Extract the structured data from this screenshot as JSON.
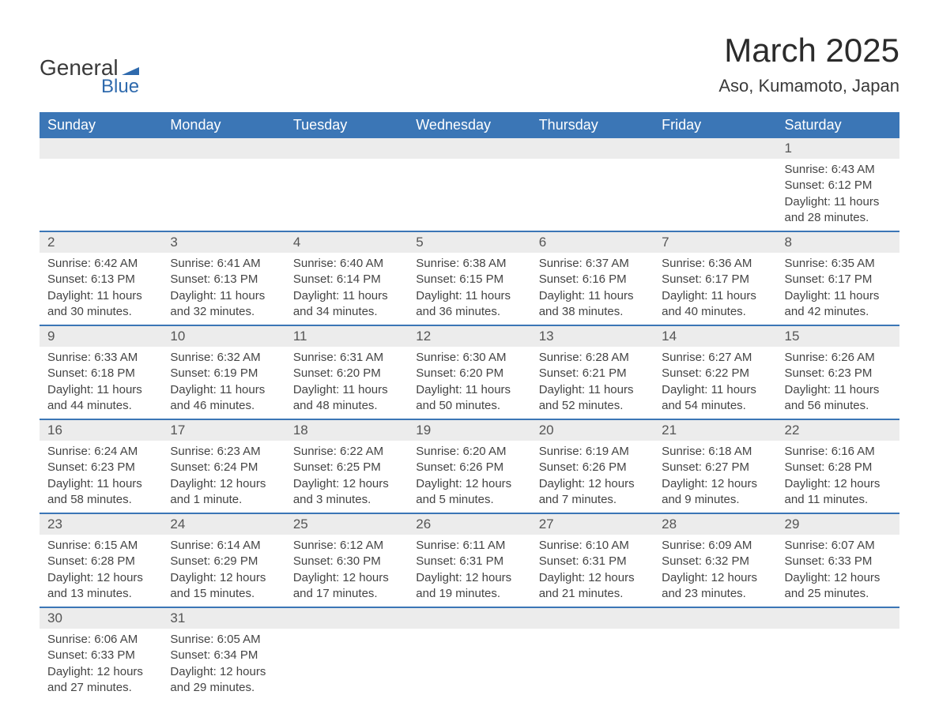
{
  "logo": {
    "text_general": "General",
    "text_blue": "Blue",
    "flag_color": "#2f6aad"
  },
  "title": "March 2025",
  "location": "Aso, Kumamoto, Japan",
  "colors": {
    "header_bg": "#3b76b6",
    "header_text": "#ffffff",
    "daynum_bg": "#ececec",
    "daynum_text": "#555555",
    "row_divider": "#3b76b6",
    "body_text": "#444444",
    "page_bg": "#ffffff"
  },
  "typography": {
    "title_fontsize": 42,
    "location_fontsize": 22,
    "header_fontsize": 18,
    "daynum_fontsize": 17,
    "content_fontsize": 15
  },
  "day_headers": [
    "Sunday",
    "Monday",
    "Tuesday",
    "Wednesday",
    "Thursday",
    "Friday",
    "Saturday"
  ],
  "weeks": [
    [
      null,
      null,
      null,
      null,
      null,
      null,
      {
        "n": "1",
        "sunrise": "Sunrise: 6:43 AM",
        "sunset": "Sunset: 6:12 PM",
        "daylight": "Daylight: 11 hours and 28 minutes."
      }
    ],
    [
      {
        "n": "2",
        "sunrise": "Sunrise: 6:42 AM",
        "sunset": "Sunset: 6:13 PM",
        "daylight": "Daylight: 11 hours and 30 minutes."
      },
      {
        "n": "3",
        "sunrise": "Sunrise: 6:41 AM",
        "sunset": "Sunset: 6:13 PM",
        "daylight": "Daylight: 11 hours and 32 minutes."
      },
      {
        "n": "4",
        "sunrise": "Sunrise: 6:40 AM",
        "sunset": "Sunset: 6:14 PM",
        "daylight": "Daylight: 11 hours and 34 minutes."
      },
      {
        "n": "5",
        "sunrise": "Sunrise: 6:38 AM",
        "sunset": "Sunset: 6:15 PM",
        "daylight": "Daylight: 11 hours and 36 minutes."
      },
      {
        "n": "6",
        "sunrise": "Sunrise: 6:37 AM",
        "sunset": "Sunset: 6:16 PM",
        "daylight": "Daylight: 11 hours and 38 minutes."
      },
      {
        "n": "7",
        "sunrise": "Sunrise: 6:36 AM",
        "sunset": "Sunset: 6:17 PM",
        "daylight": "Daylight: 11 hours and 40 minutes."
      },
      {
        "n": "8",
        "sunrise": "Sunrise: 6:35 AM",
        "sunset": "Sunset: 6:17 PM",
        "daylight": "Daylight: 11 hours and 42 minutes."
      }
    ],
    [
      {
        "n": "9",
        "sunrise": "Sunrise: 6:33 AM",
        "sunset": "Sunset: 6:18 PM",
        "daylight": "Daylight: 11 hours and 44 minutes."
      },
      {
        "n": "10",
        "sunrise": "Sunrise: 6:32 AM",
        "sunset": "Sunset: 6:19 PM",
        "daylight": "Daylight: 11 hours and 46 minutes."
      },
      {
        "n": "11",
        "sunrise": "Sunrise: 6:31 AM",
        "sunset": "Sunset: 6:20 PM",
        "daylight": "Daylight: 11 hours and 48 minutes."
      },
      {
        "n": "12",
        "sunrise": "Sunrise: 6:30 AM",
        "sunset": "Sunset: 6:20 PM",
        "daylight": "Daylight: 11 hours and 50 minutes."
      },
      {
        "n": "13",
        "sunrise": "Sunrise: 6:28 AM",
        "sunset": "Sunset: 6:21 PM",
        "daylight": "Daylight: 11 hours and 52 minutes."
      },
      {
        "n": "14",
        "sunrise": "Sunrise: 6:27 AM",
        "sunset": "Sunset: 6:22 PM",
        "daylight": "Daylight: 11 hours and 54 minutes."
      },
      {
        "n": "15",
        "sunrise": "Sunrise: 6:26 AM",
        "sunset": "Sunset: 6:23 PM",
        "daylight": "Daylight: 11 hours and 56 minutes."
      }
    ],
    [
      {
        "n": "16",
        "sunrise": "Sunrise: 6:24 AM",
        "sunset": "Sunset: 6:23 PM",
        "daylight": "Daylight: 11 hours and 58 minutes."
      },
      {
        "n": "17",
        "sunrise": "Sunrise: 6:23 AM",
        "sunset": "Sunset: 6:24 PM",
        "daylight": "Daylight: 12 hours and 1 minute."
      },
      {
        "n": "18",
        "sunrise": "Sunrise: 6:22 AM",
        "sunset": "Sunset: 6:25 PM",
        "daylight": "Daylight: 12 hours and 3 minutes."
      },
      {
        "n": "19",
        "sunrise": "Sunrise: 6:20 AM",
        "sunset": "Sunset: 6:26 PM",
        "daylight": "Daylight: 12 hours and 5 minutes."
      },
      {
        "n": "20",
        "sunrise": "Sunrise: 6:19 AM",
        "sunset": "Sunset: 6:26 PM",
        "daylight": "Daylight: 12 hours and 7 minutes."
      },
      {
        "n": "21",
        "sunrise": "Sunrise: 6:18 AM",
        "sunset": "Sunset: 6:27 PM",
        "daylight": "Daylight: 12 hours and 9 minutes."
      },
      {
        "n": "22",
        "sunrise": "Sunrise: 6:16 AM",
        "sunset": "Sunset: 6:28 PM",
        "daylight": "Daylight: 12 hours and 11 minutes."
      }
    ],
    [
      {
        "n": "23",
        "sunrise": "Sunrise: 6:15 AM",
        "sunset": "Sunset: 6:28 PM",
        "daylight": "Daylight: 12 hours and 13 minutes."
      },
      {
        "n": "24",
        "sunrise": "Sunrise: 6:14 AM",
        "sunset": "Sunset: 6:29 PM",
        "daylight": "Daylight: 12 hours and 15 minutes."
      },
      {
        "n": "25",
        "sunrise": "Sunrise: 6:12 AM",
        "sunset": "Sunset: 6:30 PM",
        "daylight": "Daylight: 12 hours and 17 minutes."
      },
      {
        "n": "26",
        "sunrise": "Sunrise: 6:11 AM",
        "sunset": "Sunset: 6:31 PM",
        "daylight": "Daylight: 12 hours and 19 minutes."
      },
      {
        "n": "27",
        "sunrise": "Sunrise: 6:10 AM",
        "sunset": "Sunset: 6:31 PM",
        "daylight": "Daylight: 12 hours and 21 minutes."
      },
      {
        "n": "28",
        "sunrise": "Sunrise: 6:09 AM",
        "sunset": "Sunset: 6:32 PM",
        "daylight": "Daylight: 12 hours and 23 minutes."
      },
      {
        "n": "29",
        "sunrise": "Sunrise: 6:07 AM",
        "sunset": "Sunset: 6:33 PM",
        "daylight": "Daylight: 12 hours and 25 minutes."
      }
    ],
    [
      {
        "n": "30",
        "sunrise": "Sunrise: 6:06 AM",
        "sunset": "Sunset: 6:33 PM",
        "daylight": "Daylight: 12 hours and 27 minutes."
      },
      {
        "n": "31",
        "sunrise": "Sunrise: 6:05 AM",
        "sunset": "Sunset: 6:34 PM",
        "daylight": "Daylight: 12 hours and 29 minutes."
      },
      null,
      null,
      null,
      null,
      null
    ]
  ]
}
